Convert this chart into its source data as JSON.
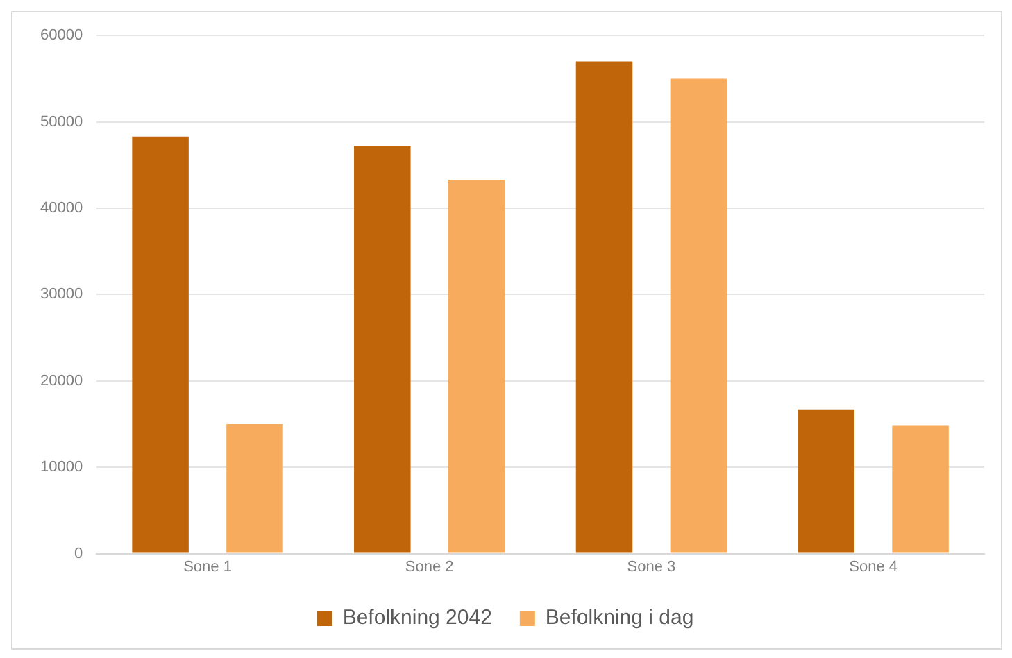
{
  "chart_data": {
    "type": "bar",
    "categories": [
      "Sone 1",
      "Sone 2",
      "Sone 3",
      "Sone 4"
    ],
    "series": [
      {
        "name": "Befolkning 2042",
        "color": "#c0650a",
        "values": [
          48300,
          47200,
          57000,
          16700
        ]
      },
      {
        "name": "Befolkning i dag",
        "color": "#f6ac5c",
        "values": [
          15000,
          43300,
          55000,
          14800
        ]
      }
    ],
    "ylim": [
      0,
      60000
    ],
    "yticks": [
      0,
      10000,
      20000,
      30000,
      40000,
      50000,
      60000
    ],
    "grid": "y",
    "legend": "bottom"
  }
}
